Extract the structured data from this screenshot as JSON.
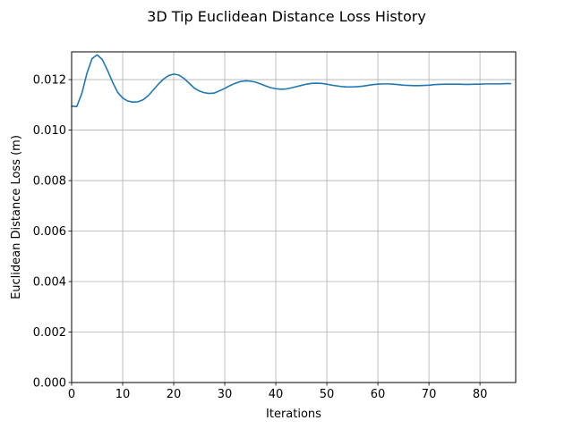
{
  "chart_data": {
    "type": "line",
    "title": "3D Tip Euclidean Distance Loss History",
    "xlabel": "Iterations",
    "ylabel": "Euclidean Distance Loss (m)",
    "xlim": [
      0,
      87
    ],
    "ylim": [
      0,
      0.0131
    ],
    "x_ticks": [
      0,
      10,
      20,
      30,
      40,
      50,
      60,
      70,
      80
    ],
    "x_tick_labels": [
      "0",
      "10",
      "20",
      "30",
      "40",
      "50",
      "60",
      "70",
      "80"
    ],
    "y_ticks": [
      0,
      0.002,
      0.004,
      0.006,
      0.008,
      0.01,
      0.012
    ],
    "y_tick_labels": [
      "0.000",
      "0.002",
      "0.004",
      "0.006",
      "0.008",
      "0.010",
      "0.012"
    ],
    "grid": true,
    "series": [
      {
        "color": "#1f77b4",
        "x": [
          0,
          1,
          2,
          3,
          4,
          5,
          6,
          7,
          8,
          9,
          10,
          11,
          12,
          13,
          14,
          15,
          16,
          17,
          18,
          19,
          20,
          21,
          22,
          23,
          24,
          25,
          26,
          27,
          28,
          29,
          30,
          31,
          32,
          33,
          34,
          35,
          36,
          37,
          38,
          39,
          40,
          41,
          42,
          43,
          44,
          45,
          46,
          47,
          48,
          49,
          50,
          51,
          52,
          53,
          54,
          55,
          56,
          57,
          58,
          59,
          60,
          61,
          62,
          63,
          64,
          65,
          66,
          67,
          68,
          69,
          70,
          71,
          72,
          73,
          74,
          75,
          76,
          77,
          78,
          79,
          80,
          81,
          82,
          83,
          84,
          85,
          86
        ],
        "y": [
          0.01095,
          0.01093,
          0.01145,
          0.01225,
          0.01283,
          0.01298,
          0.0128,
          0.01238,
          0.01191,
          0.0115,
          0.01127,
          0.01115,
          0.01111,
          0.01112,
          0.0112,
          0.01136,
          0.01159,
          0.01182,
          0.01202,
          0.01216,
          0.01222,
          0.01218,
          0.01205,
          0.01186,
          0.01167,
          0.01155,
          0.01148,
          0.01145,
          0.01147,
          0.01156,
          0.01165,
          0.01176,
          0.01185,
          0.01192,
          0.01195,
          0.01194,
          0.0119,
          0.01183,
          0.01175,
          0.01168,
          0.01164,
          0.01162,
          0.01163,
          0.01167,
          0.01172,
          0.01177,
          0.01182,
          0.01185,
          0.01186,
          0.01185,
          0.01182,
          0.01178,
          0.01175,
          0.01172,
          0.01171,
          0.01171,
          0.01172,
          0.01174,
          0.01177,
          0.0118,
          0.01182,
          0.01183,
          0.01183,
          0.01182,
          0.0118,
          0.01178,
          0.01177,
          0.01176,
          0.01176,
          0.01177,
          0.01178,
          0.0118,
          0.01181,
          0.01182,
          0.01182,
          0.01182,
          0.01182,
          0.01181,
          0.01181,
          0.01182,
          0.01182,
          0.01183,
          0.01183,
          0.01183,
          0.01183,
          0.01184,
          0.01184
        ]
      }
    ]
  }
}
